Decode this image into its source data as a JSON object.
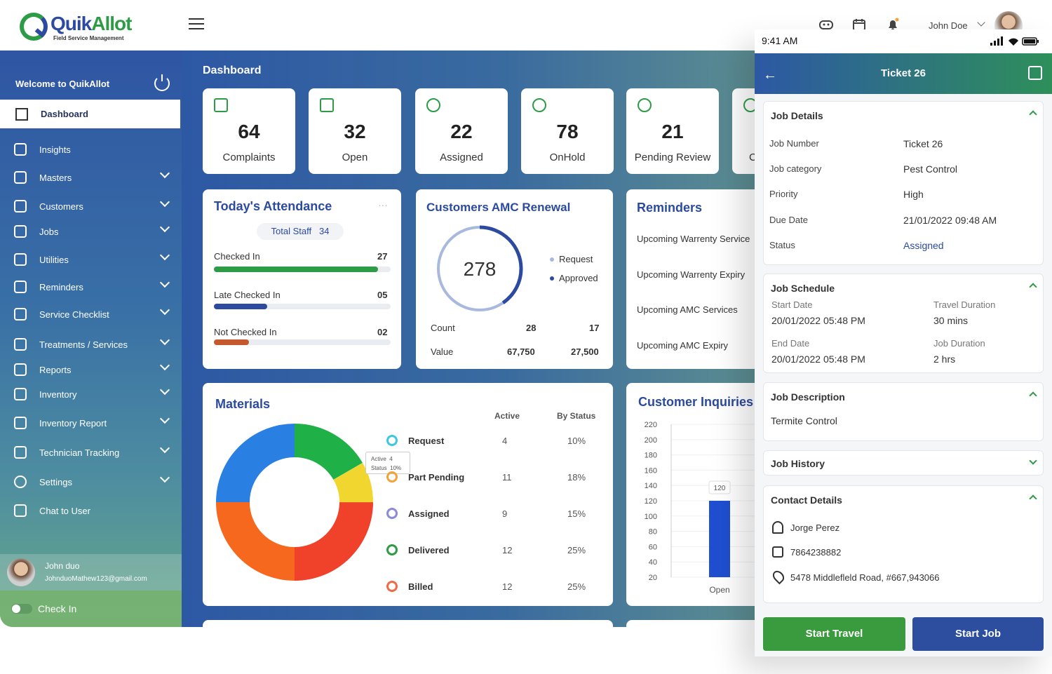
{
  "app": {
    "logo_primary": "Quik",
    "logo_secondary": "Allot",
    "logo_tagline": "Field Service Management"
  },
  "header": {
    "user_name": "John Doe",
    "icons": [
      "game-controller-icon",
      "calendar-icon",
      "bell-icon"
    ]
  },
  "sidebar": {
    "welcome": "Welcome to QuikAllot",
    "items": [
      {
        "label": "Dashboard",
        "icon": "dashboard-icon",
        "active": true
      },
      {
        "label": "Insights",
        "icon": "insights-icon"
      },
      {
        "label": "Masters",
        "icon": "masters-icon"
      },
      {
        "label": "Customers",
        "icon": "customers-icon"
      },
      {
        "label": "Jobs",
        "icon": "jobs-icon"
      },
      {
        "label": "Utilities",
        "icon": "utilities-icon"
      },
      {
        "label": "Reminders",
        "icon": "bell-icon"
      },
      {
        "label": "Service Checklist",
        "icon": "checklist-icon"
      },
      {
        "label": "Treatments / Services",
        "icon": "treatments-icon"
      },
      {
        "label": "Reports",
        "icon": "reports-icon"
      },
      {
        "label": "Inventory",
        "icon": "inventory-icon"
      },
      {
        "label": "Inventory Report",
        "icon": "inventory-report-icon"
      },
      {
        "label": "Technician Tracking",
        "icon": "tracking-icon"
      },
      {
        "label": "Settings",
        "icon": "gear-icon"
      },
      {
        "label": "Chat to User",
        "icon": "chat-icon"
      }
    ],
    "user": {
      "name": "John duo",
      "email": "JohnduoMathew123@gmail.com"
    },
    "checkin_label": "Check In"
  },
  "dashboard": {
    "title": "Dashboard",
    "stats": [
      {
        "value": "64",
        "label": "Complaints"
      },
      {
        "value": "32",
        "label": "Open"
      },
      {
        "value": "22",
        "label": "Assigned"
      },
      {
        "value": "78",
        "label": "OnHold"
      },
      {
        "value": "21",
        "label": "Pending Review"
      },
      {
        "value": "",
        "label": "C"
      }
    ],
    "attendance": {
      "title": "Today's Attendance",
      "total_label": "Total Staff",
      "total": "34",
      "rows": [
        {
          "label": "Checked In",
          "value": "27",
          "pct": 0.93,
          "color": "#2e9b47"
        },
        {
          "label": "Late Checked In",
          "value": "05",
          "pct": 0.3,
          "color": "#2b4aa0"
        },
        {
          "label": "Not Checked In",
          "value": "02",
          "pct": 0.2,
          "color": "#c4582e"
        }
      ]
    },
    "amc": {
      "title": "Customers AMC Renewal",
      "center": "278",
      "legend": [
        "Request",
        "Approved"
      ],
      "count_label": "Count",
      "value_label": "Value",
      "count_request": "28",
      "count_approved": "17",
      "value_request": "67,750",
      "value_approved": "27,500"
    },
    "reminders": {
      "title": "Reminders",
      "items": [
        "Upcoming Warrenty Service",
        "Upcoming Warrenty Expiry",
        "Upcoming AMC Services",
        "Upcoming AMC Expiry"
      ]
    },
    "materials": {
      "title": "Materials",
      "col_active": "Active",
      "col_status": "By Status",
      "tooltip": {
        "active_label": "Active",
        "active_value": "4",
        "status_label": "Status",
        "status_value": "10%"
      },
      "rows": [
        {
          "label": "Request",
          "active": "4",
          "status": "10%",
          "color": "#3cc8e0"
        },
        {
          "label": "Part Pending",
          "active": "11",
          "status": "18%",
          "color": "#f2a33a"
        },
        {
          "label": "Assigned",
          "active": "9",
          "status": "15%",
          "color": "#8a8ad8"
        },
        {
          "label": "Delivered",
          "active": "12",
          "status": "25%",
          "color": "#2e9b47"
        },
        {
          "label": "Billed",
          "active": "12",
          "status": "25%",
          "color": "#f06a4a"
        }
      ]
    },
    "inquiries": {
      "title": "Customer Inquiries"
    }
  },
  "chart_data": {
    "type": "bar",
    "title": "Customer Inquiries",
    "categories": [
      "Open"
    ],
    "values": [
      120
    ],
    "y_ticks": [
      "220",
      "200",
      "180",
      "160",
      "140",
      "120",
      "100",
      "80",
      "60",
      "40",
      "20"
    ],
    "ylim": [
      20,
      220
    ],
    "bar_label": "120",
    "bar_color": "#1f4fd0"
  },
  "phone": {
    "time": "9:41 AM",
    "title": "Ticket 26",
    "job_details": {
      "title": "Job Details",
      "rows": [
        {
          "k": "Job Number",
          "v": "Ticket 26"
        },
        {
          "k": "Job category",
          "v": "Pest Control"
        },
        {
          "k": "Priority",
          "v": "High"
        },
        {
          "k": "Due Date",
          "v": "21/01/2022 09:48 AM"
        },
        {
          "k": "Status",
          "v": "Assigned"
        }
      ]
    },
    "job_schedule": {
      "title": "Job Schedule",
      "start_label": "Start Date",
      "start": "20/01/2022 05:48 PM",
      "travel_label": "Travel Duration",
      "travel": "30 mins",
      "end_label": "End Date",
      "end": "20/01/2022 05:48 PM",
      "duration_label": "Job Duration",
      "duration": "2 hrs"
    },
    "job_description": {
      "title": "Job Description",
      "text": "Termite Control"
    },
    "job_history": {
      "title": "Job History"
    },
    "contact": {
      "title": "Contact Details",
      "name": "Jorge Perez",
      "phone": "7864238882",
      "address": "5478 Middlefleld Road, #667,943066"
    },
    "start_travel": "Start Travel",
    "start_job": "Start Job"
  }
}
